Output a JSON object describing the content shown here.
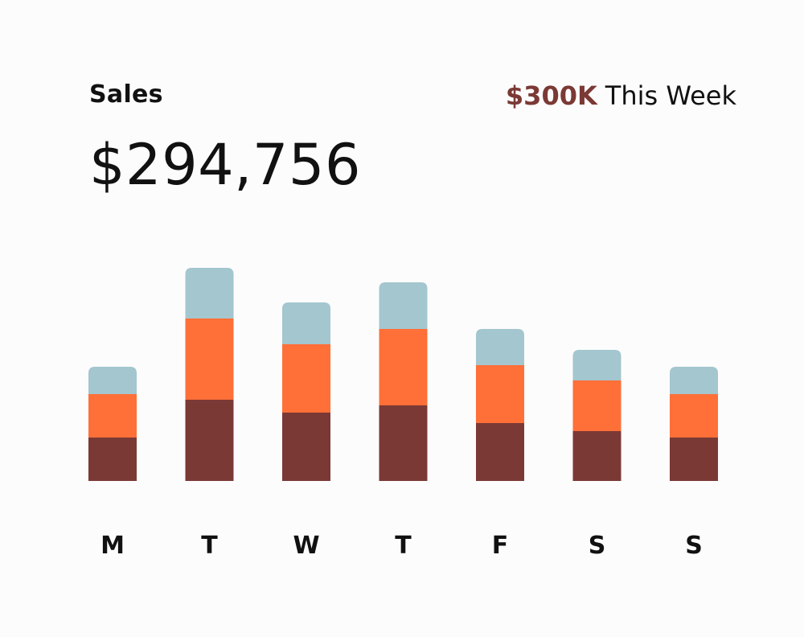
{
  "header": {
    "title": "Sales",
    "total": "$294,756",
    "target_amount": "$300K",
    "target_period": "This Week"
  },
  "colors": {
    "top_segment": "#a3c6cf",
    "middle_segment": "#ff6f38",
    "bottom_segment": "#7b3935",
    "target_text": "#7b3935",
    "text": "#111111"
  },
  "chart_data": {
    "type": "bar",
    "stacked": true,
    "categories": [
      "M",
      "T",
      "W",
      "T",
      "F",
      "S",
      "S"
    ],
    "series": [
      {
        "values": [
          54,
          101,
          85,
          94,
          72,
          62,
          54
        ]
      },
      {
        "values": [
          54,
          101,
          85,
          95,
          72,
          63,
          54
        ]
      },
      {
        "values": [
          34,
          63,
          52,
          58,
          45,
          38,
          34
        ]
      }
    ],
    "ylim": [
      0,
      270
    ],
    "grid": false,
    "legend": "none"
  }
}
